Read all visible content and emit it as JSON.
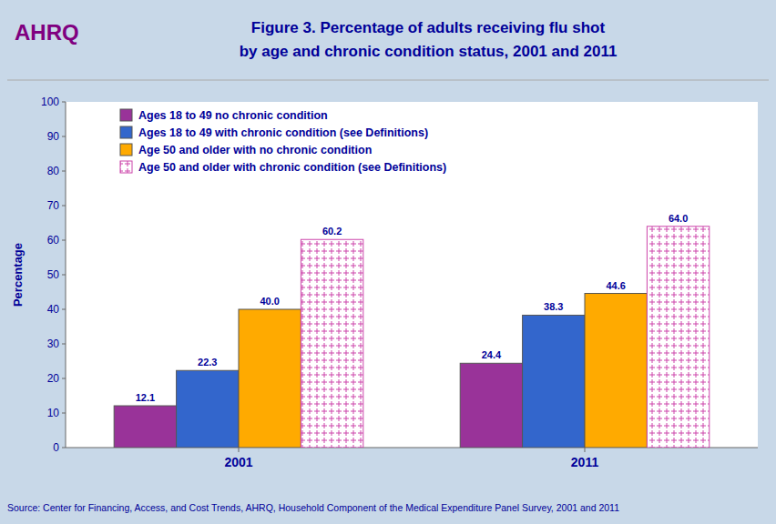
{
  "chart_data": {
    "type": "bar",
    "title": "Figure 3. Percentage of adults receiving flu shot",
    "subtitle": "by age and chronic condition status, 2001 and 2011",
    "annotations": [
      "AHRQ",
      "Source: Center for Financing, Access, and Cost Trends, AHRQ, Household Component of the Medical Expenditure Panel Survey,  2001 and 2011"
    ],
    "categories": [
      "2001",
      "2011"
    ],
    "series": [
      {
        "name": "Ages 18 to 49 no chronic condition",
        "color": "#993399",
        "values": [
          12.1,
          24.4
        ]
      },
      {
        "name": "Ages 18 to 49 with chronic condition (see Definitions)",
        "color": "#3366CC",
        "values": [
          22.3,
          38.3
        ]
      },
      {
        "name": "Age 50 and older with no chronic condition",
        "color": "#FFAA00",
        "values": [
          40.0,
          44.6
        ],
        "value_labels": [
          "40.0",
          "44.6"
        ]
      },
      {
        "name": "Age 50 and older with chronic condition (see Definitions)",
        "color": "#FFFFFF",
        "values": [
          60.2,
          64.0
        ],
        "value_labels": [
          "60.2",
          "64.0"
        ]
      }
    ],
    "ylabel": "Percentage",
    "ylim": [
      0,
      100
    ],
    "yticks": [
      0,
      10,
      20,
      30,
      40,
      50,
      60,
      70,
      80,
      90,
      100
    ],
    "grid": false,
    "legend": "upper left",
    "data_labels": true
  }
}
